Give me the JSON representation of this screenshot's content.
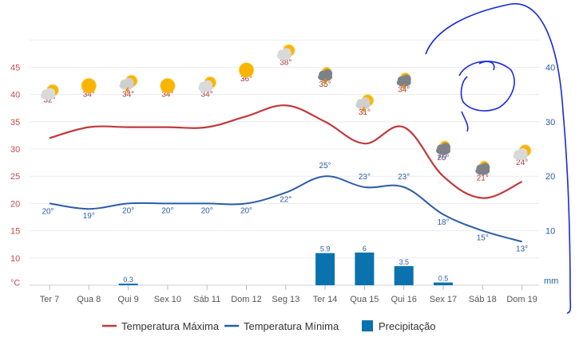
{
  "chart_data": {
    "type": "line",
    "categories": [
      "Ter 7",
      "Qua 8",
      "Qui 9",
      "Sex 10",
      "Sáb 11",
      "Dom 12",
      "Seg 13",
      "Ter 14",
      "Qua 15",
      "Qui 16",
      "Sex 17",
      "Sáb 18",
      "Dom 19"
    ],
    "series": [
      {
        "name": "Temperatura Máxima",
        "values": [
          32,
          34,
          34,
          34,
          34,
          36,
          38,
          35,
          31,
          34,
          25,
          21,
          24
        ],
        "color": "#c0393b"
      },
      {
        "name": "Temperatura Mínima",
        "values": [
          20,
          19,
          20,
          20,
          20,
          20,
          22,
          25,
          23,
          23,
          18,
          15,
          13
        ],
        "color": "#2a5ca8"
      },
      {
        "name": "Precipitação",
        "values": [
          null,
          null,
          0.3,
          null,
          null,
          null,
          null,
          5.9,
          6,
          3.5,
          0.5,
          null,
          null
        ],
        "color": "#0a72ae"
      }
    ],
    "left_axis": {
      "unit": "°C",
      "ticks": [
        10,
        15,
        20,
        25,
        30,
        35,
        40,
        45
      ],
      "range": [
        5,
        45
      ]
    },
    "right_axis": {
      "unit": "mm",
      "ticks": [
        10,
        20,
        30,
        40
      ],
      "range": [
        0,
        40
      ]
    },
    "icons": [
      "sun-cloud",
      "sun",
      "sun-storm",
      "sun",
      "sun-cloud",
      "sun",
      "sun-cloud",
      "cloud-storm",
      "sun-storm",
      "cloud-storm",
      "cloud-rain",
      "cloud",
      "sun-cloud"
    ],
    "legend": {
      "placement": "bottom"
    }
  }
}
